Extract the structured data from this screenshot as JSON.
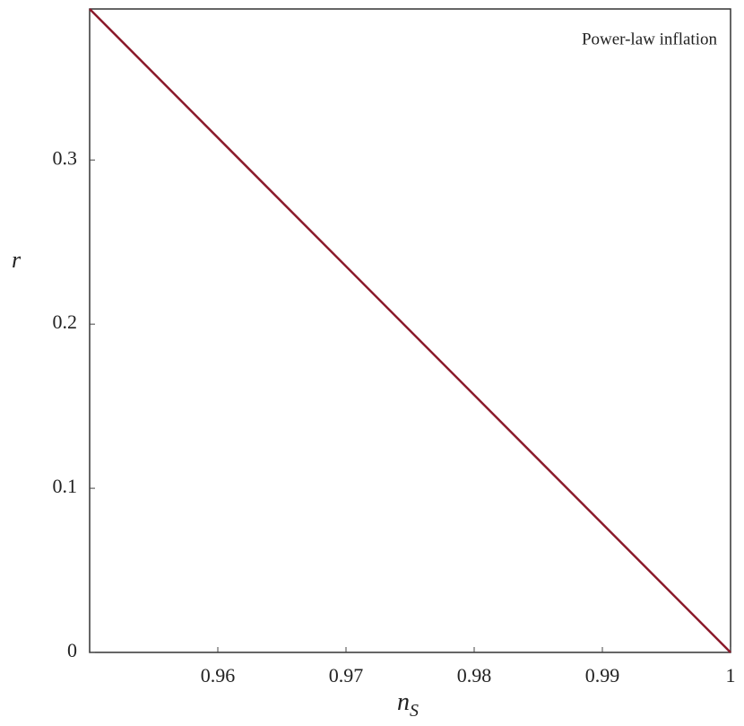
{
  "chart_data": {
    "type": "line",
    "annotation": "Power-law inflation",
    "xlabel": "n",
    "xlabel_sub": "S",
    "ylabel": "r",
    "x": [
      0.95,
      1
    ],
    "series": [
      {
        "color": "#8b1a2b",
        "values": [
          0.392,
          0
        ]
      }
    ],
    "xlim": [
      0.95,
      1
    ],
    "ylim": [
      0,
      0.392
    ],
    "xticks": [
      0.96,
      0.97,
      0.98,
      0.99,
      1
    ],
    "yticks": [
      0,
      0.1,
      0.2,
      0.3
    ]
  }
}
